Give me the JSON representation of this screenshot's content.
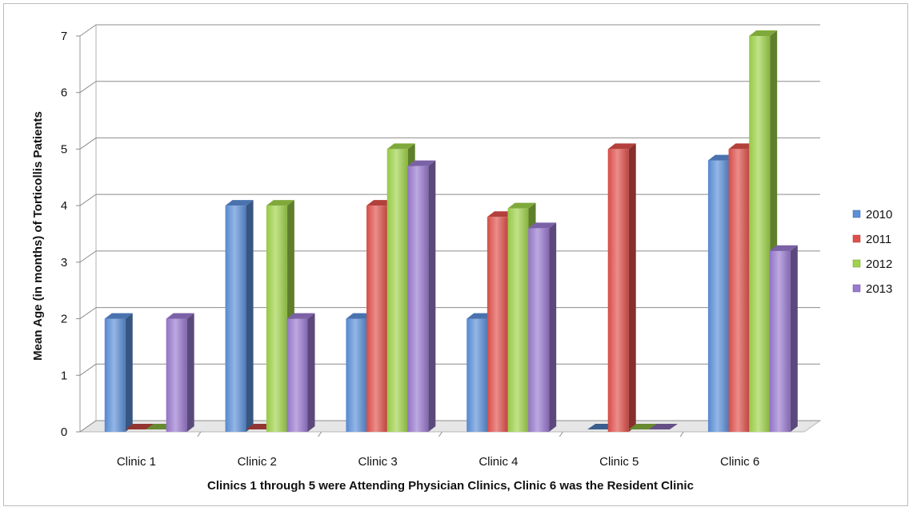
{
  "chart_data": {
    "type": "bar",
    "style": "3d-clustered-column",
    "categories": [
      "Clinic 1",
      "Clinic 2",
      "Clinic 3",
      "Clinic 4",
      "Clinic 5",
      "Clinic 6"
    ],
    "series": [
      {
        "name": "2010",
        "values": [
          2,
          4,
          2,
          2,
          0,
          4.8
        ],
        "color": "#5b8fd9"
      },
      {
        "name": "2011",
        "values": [
          0,
          0,
          4,
          3.8,
          5,
          5
        ],
        "color": "#e0504b"
      },
      {
        "name": "2012",
        "values": [
          0,
          4,
          5,
          3.95,
          0,
          7
        ],
        "color": "#9fd34a"
      },
      {
        "name": "2013",
        "values": [
          2,
          2,
          4.7,
          3.6,
          0,
          3.2
        ],
        "color": "#9a79cf"
      }
    ],
    "title": "",
    "xlabel": "Clinics 1 through 5 were Attending Physician Clinics, Clinic 6 was the Resident Clinic",
    "ylabel": "Mean Age (in months) of Torticollis Patients",
    "ylim": [
      0,
      7
    ],
    "yticks": [
      "0",
      "1",
      "2",
      "3",
      "4",
      "5",
      "6",
      "7"
    ],
    "grid": true,
    "legend_position": "right"
  }
}
